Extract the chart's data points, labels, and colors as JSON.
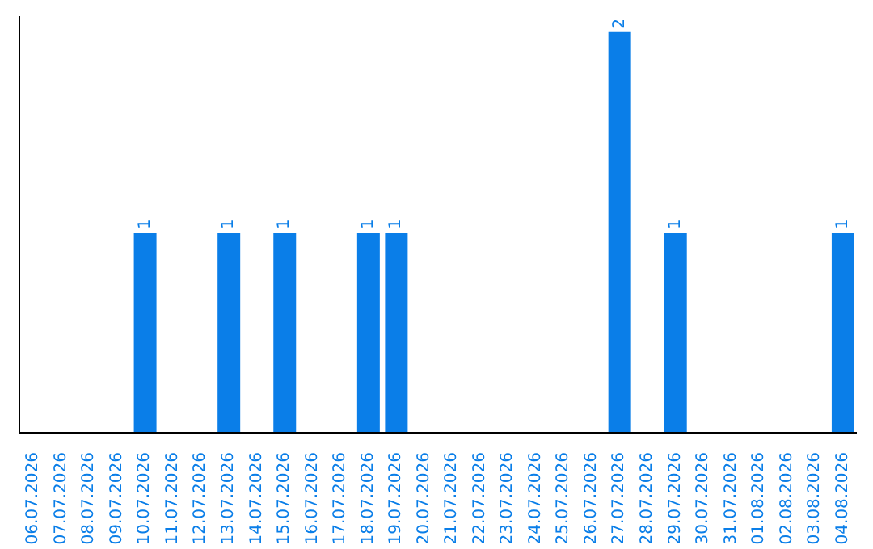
{
  "chart_data": {
    "type": "bar",
    "categories": [
      "06.07.2026",
      "07.07.2026",
      "08.07.2026",
      "09.07.2026",
      "10.07.2026",
      "11.07.2026",
      "12.07.2026",
      "13.07.2026",
      "14.07.2026",
      "15.07.2026",
      "16.07.2026",
      "17.07.2026",
      "18.07.2026",
      "19.07.2026",
      "20.07.2026",
      "21.07.2026",
      "22.07.2026",
      "23.07.2026",
      "24.07.2026",
      "25.07.2026",
      "26.07.2026",
      "27.07.2026",
      "28.07.2026",
      "29.07.2026",
      "30.07.2026",
      "31.07.2026",
      "01.08.2026",
      "02.08.2026",
      "03.08.2026",
      "04.08.2026"
    ],
    "values": [
      0,
      0,
      0,
      0,
      1,
      0,
      0,
      1,
      0,
      1,
      0,
      0,
      1,
      1,
      0,
      0,
      0,
      0,
      0,
      0,
      0,
      2,
      0,
      1,
      0,
      0,
      0,
      0,
      0,
      1
    ],
    "value_labels": [
      null,
      null,
      null,
      null,
      "1",
      null,
      null,
      "1",
      null,
      "1",
      null,
      null,
      "1",
      "1",
      null,
      null,
      null,
      null,
      null,
      null,
      null,
      "2",
      null,
      "1",
      null,
      null,
      null,
      null,
      null,
      "1"
    ],
    "color": "#0a7ee8",
    "tick_labels": "x"
  }
}
